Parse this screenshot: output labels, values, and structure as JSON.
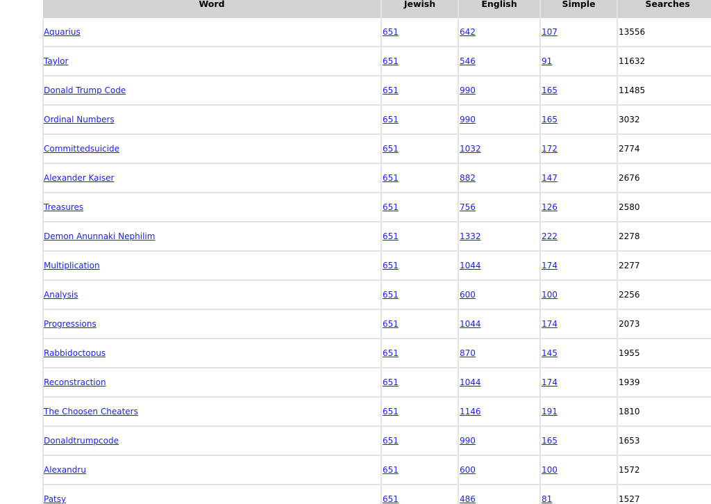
{
  "table": {
    "headers": [
      "Word",
      "Jewish",
      "English",
      "Simple",
      "Searches"
    ],
    "rows": [
      [
        "Aquarius",
        "651",
        "642",
        "107",
        "13556"
      ],
      [
        "Taylor",
        "651",
        "546",
        "91",
        "11632"
      ],
      [
        "Donald Trump Code",
        "651",
        "990",
        "165",
        "11485"
      ],
      [
        "Ordinal Numbers",
        "651",
        "990",
        "165",
        "3032"
      ],
      [
        "Committedsuicide",
        "651",
        "1032",
        "172",
        "2774"
      ],
      [
        "Alexander Kaiser",
        "651",
        "882",
        "147",
        "2676"
      ],
      [
        "Treasures",
        "651",
        "756",
        "126",
        "2580"
      ],
      [
        "Demon Anunnaki Nephilim",
        "651",
        "1332",
        "222",
        "2278"
      ],
      [
        "Multiplication",
        "651",
        "1044",
        "174",
        "2277"
      ],
      [
        "Analysis",
        "651",
        "600",
        "100",
        "2256"
      ],
      [
        "Progressions",
        "651",
        "1044",
        "174",
        "2073"
      ],
      [
        "Rabbidoctopus",
        "651",
        "870",
        "145",
        "1955"
      ],
      [
        "Reconstraction",
        "651",
        "1044",
        "174",
        "1939"
      ],
      [
        "The Choosen Cheaters",
        "651",
        "1146",
        "191",
        "1810"
      ],
      [
        "Donaldtrumpcode",
        "651",
        "990",
        "165",
        "1653"
      ],
      [
        "Alexandru",
        "651",
        "600",
        "100",
        "1572"
      ],
      [
        "Patsy",
        "651",
        "486",
        "81",
        "1527"
      ]
    ]
  },
  "colors": {
    "link": "#1a1aff",
    "header_bg": "#d3d3d3"
  }
}
